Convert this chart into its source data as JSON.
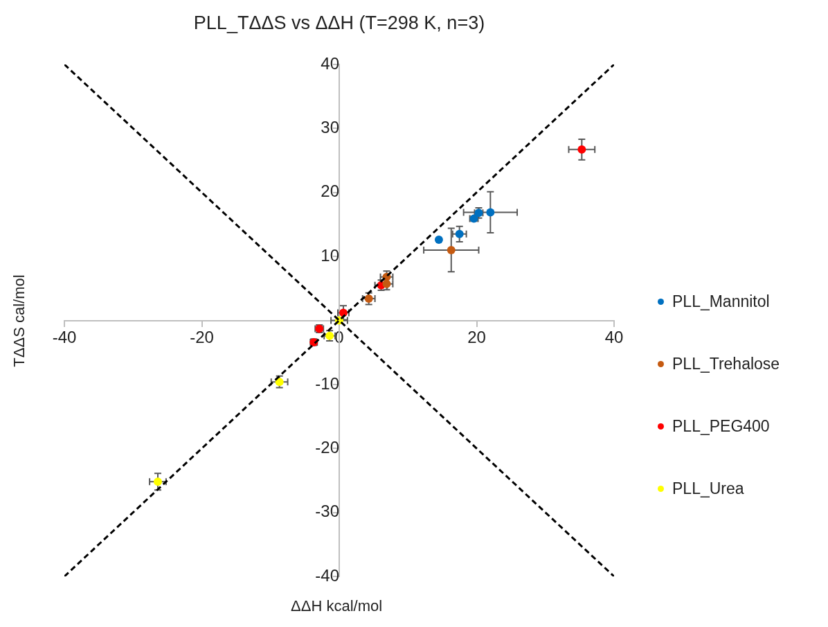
{
  "chart_data": {
    "type": "scatter",
    "title": "PLL_TΔΔS vs ΔΔH (T=298 K, n=3)",
    "xlabel": "ΔΔH kcal/mol",
    "ylabel": "TΔΔS cal/mol",
    "xlim": [
      -40,
      40
    ],
    "xticks": [
      -40,
      -20,
      0,
      20,
      40
    ],
    "ylim": [
      -40,
      40
    ],
    "yticks": [
      -40,
      -30,
      -20,
      -10,
      {
        "value": 0,
        "label": null
      },
      10,
      20,
      30,
      40
    ],
    "grid": false,
    "legend": "right",
    "marker": "circle",
    "series": [
      {
        "name": "PLL_Mannitol",
        "color": "#0070c0",
        "x": [
          14.5,
          17.5,
          19.6,
          20.3,
          22.0
        ],
        "values": [
          12.6,
          13.5,
          15.9,
          16.8,
          16.9
        ],
        "xerrors": [
          null,
          1.0,
          0.6,
          0.6,
          3.9
        ],
        "errors": [
          null,
          1.2,
          0.4,
          0.8,
          3.2
        ]
      },
      {
        "name": "PLL_Trehalose",
        "color": "#c55a11",
        "x": [
          16.3,
          6.9,
          6.9,
          4.3
        ],
        "values": [
          11.0,
          6.8,
          5.7,
          3.4
        ],
        "xerrors": [
          4.0,
          0.9,
          0.9,
          0.9
        ],
        "errors": [
          3.4,
          0.9,
          0.9,
          0.9
        ]
      },
      {
        "name": "PLL_PEG400",
        "color": "#ff0000",
        "x": [
          35.3,
          6.1,
          0.6,
          -2.9,
          -3.7
        ],
        "values": [
          26.7,
          5.5,
          1.2,
          -1.3,
          -3.4
        ],
        "xerrors": [
          1.9,
          0.9,
          0.8,
          0.6,
          0.5
        ],
        "errors": [
          1.6,
          0.8,
          1.1,
          0.6,
          0.5
        ]
      },
      {
        "name": "PLL_Urea",
        "color": "#ffff00",
        "x": [
          0,
          -1.4,
          -8.7,
          -26.4
        ],
        "values": [
          0,
          -2.4,
          -9.6,
          -25.2
        ],
        "xerrors": [
          1.2,
          0.8,
          1.2,
          1.2
        ],
        "errors": [
          null,
          0.8,
          0.9,
          1.3
        ]
      },
      {
        "type": "line",
        "color": "#000000",
        "line_style": "dashed",
        "marker": "none",
        "x": [
          -40,
          40
        ],
        "values": [
          -40,
          40
        ]
      },
      {
        "type": "line",
        "color": "#000000",
        "line_style": "dashed",
        "marker": "none",
        "x": [
          -40,
          40
        ],
        "values": [
          40,
          -40
        ]
      }
    ]
  }
}
